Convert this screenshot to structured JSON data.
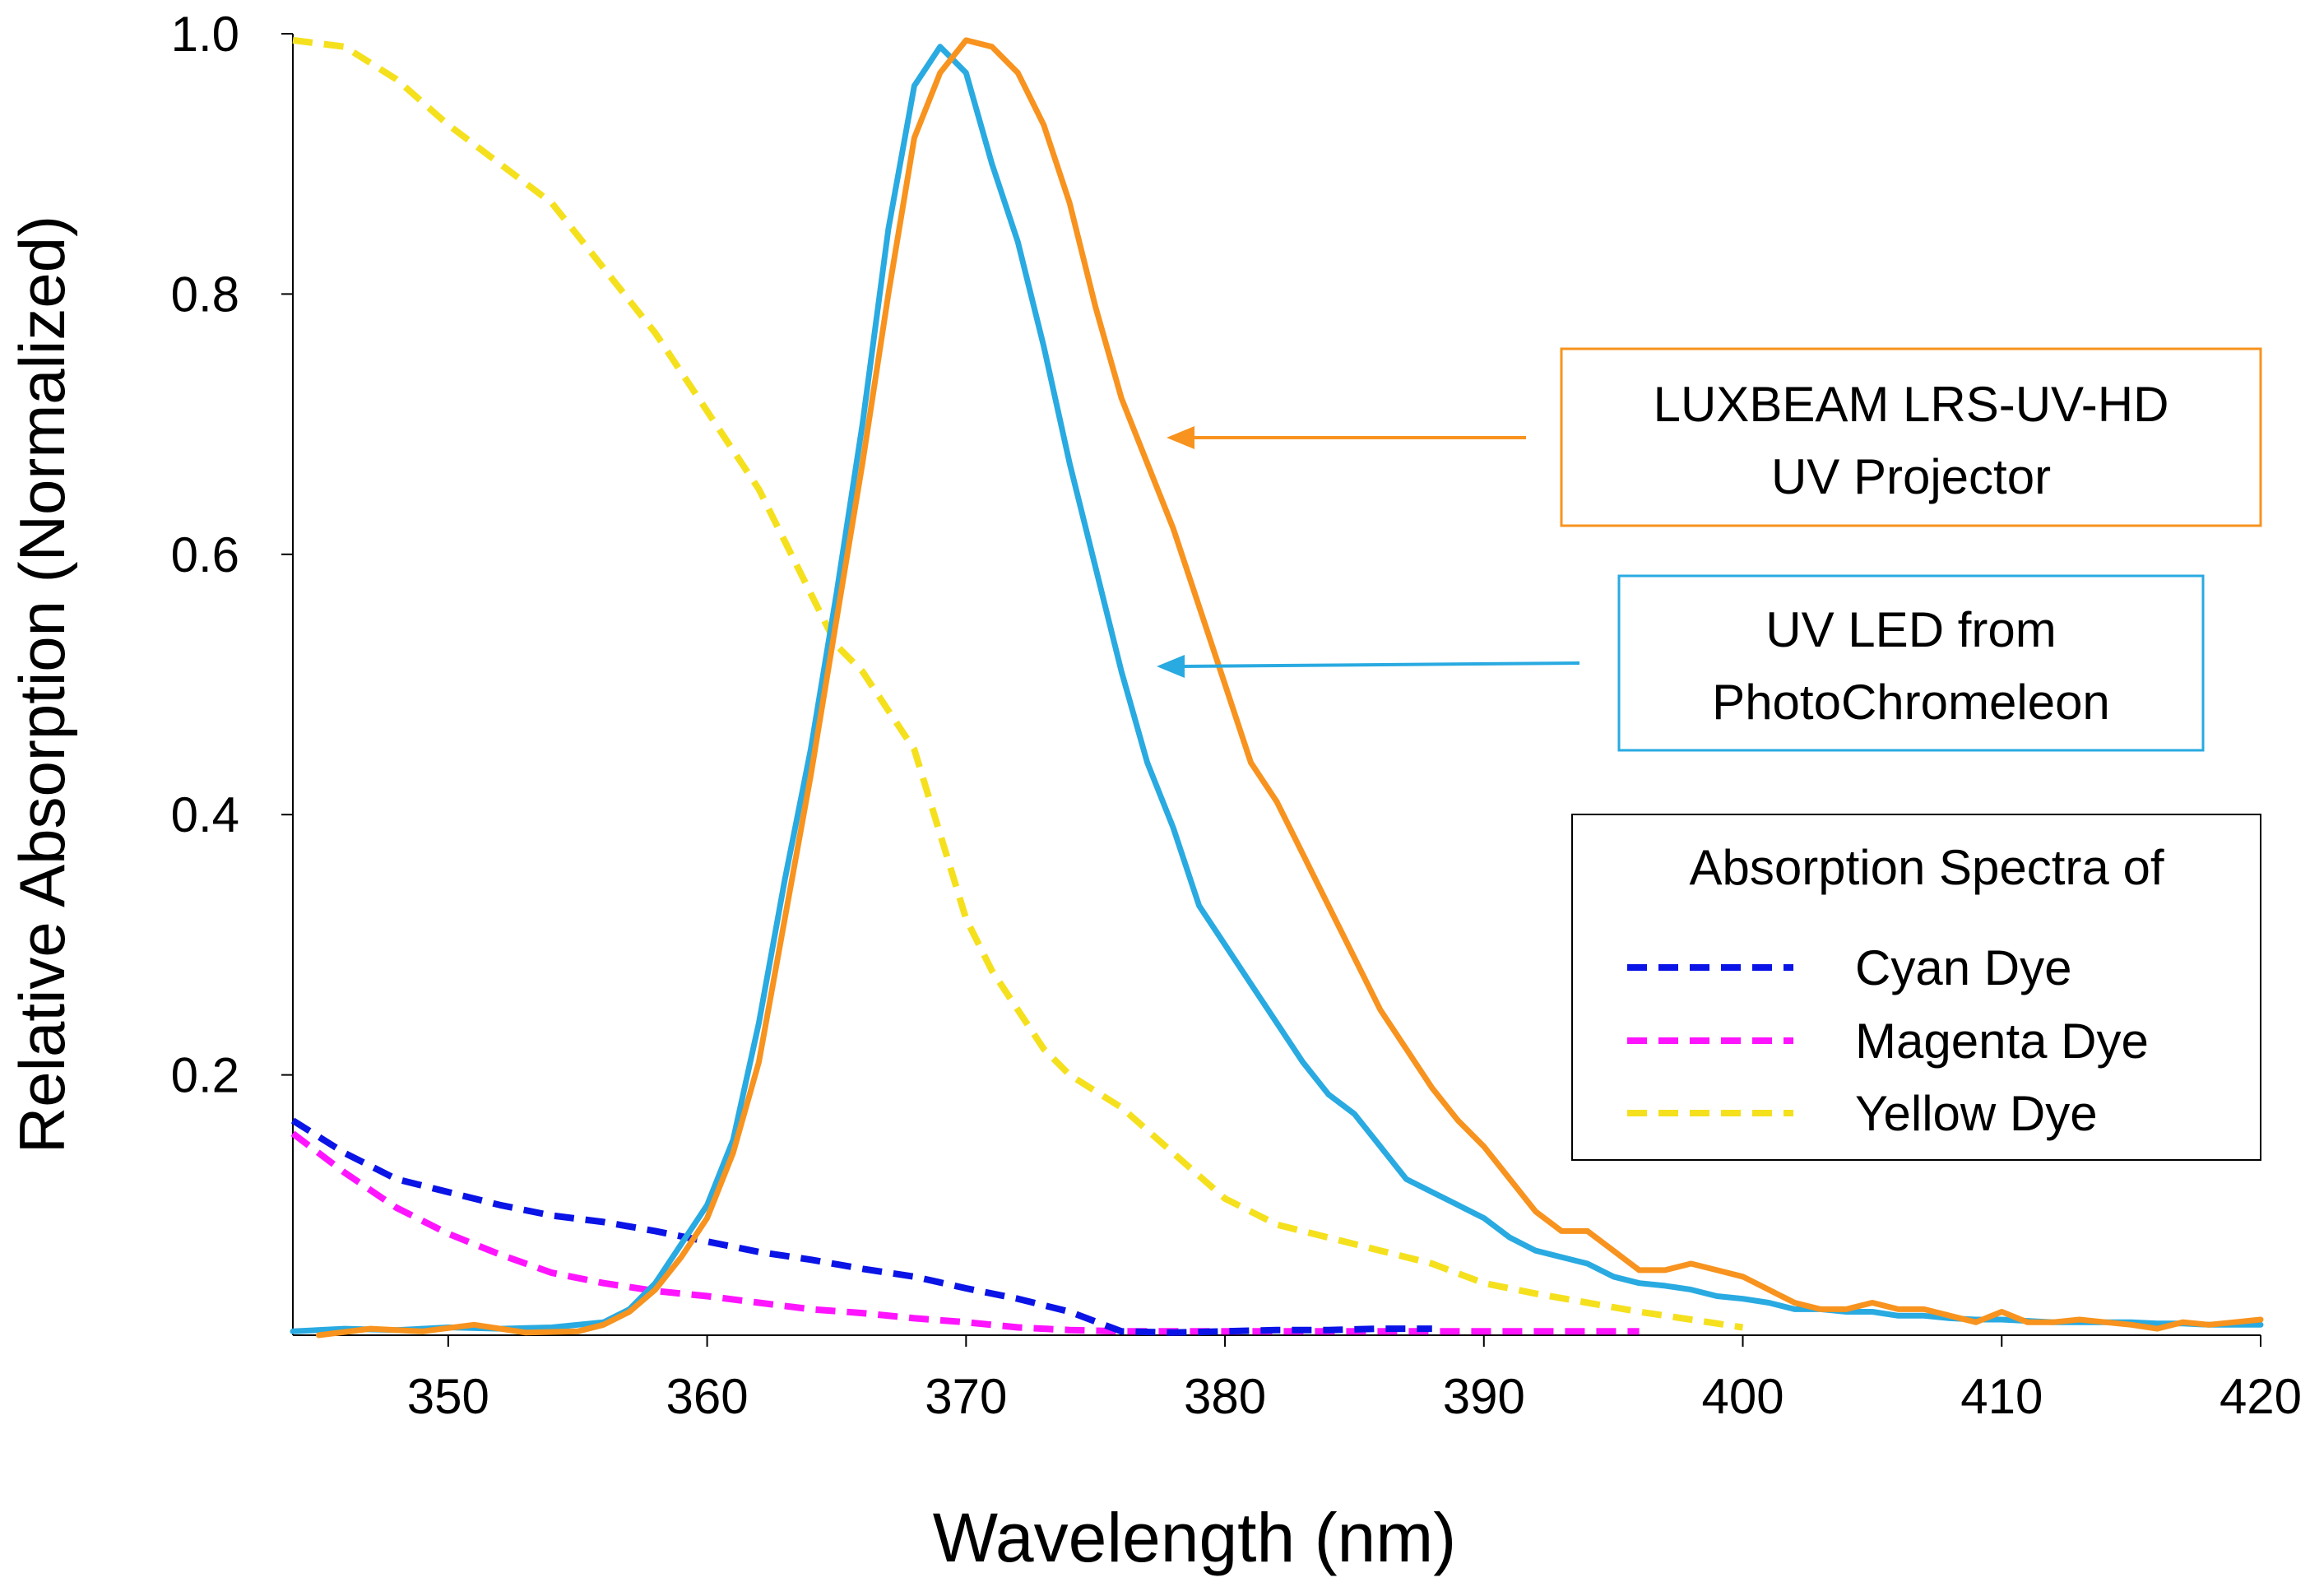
{
  "chart_data": {
    "type": "line",
    "xlabel": "Wavelength (nm)",
    "ylabel": "Relative Absorption (Normalized)",
    "xlim": [
      344,
      420
    ],
    "ylim": [
      0,
      1.0
    ],
    "x_ticks": [
      {
        "value": 350,
        "label": "350"
      },
      {
        "value": 360,
        "label": "360"
      },
      {
        "value": 370,
        "label": "370"
      },
      {
        "value": 380,
        "label": "380"
      },
      {
        "value": 390,
        "label": "390"
      },
      {
        "value": 400,
        "label": "400"
      },
      {
        "value": 410,
        "label": "410"
      },
      {
        "value": 420,
        "label": "420"
      }
    ],
    "y_ticks": [
      {
        "value": 0.2,
        "label": "0.2"
      },
      {
        "value": 0.4,
        "label": "0.4"
      },
      {
        "value": 0.6,
        "label": "0.6"
      },
      {
        "value": 0.8,
        "label": "0.8"
      },
      {
        "value": 1.0,
        "label": "1.0"
      }
    ],
    "grid": false,
    "series": [
      {
        "key": "projector",
        "color": "#f7931e",
        "dashed": false,
        "x": [
          345,
          347,
          349,
          351,
          353,
          355,
          356,
          357,
          358,
          359,
          360,
          361,
          362,
          363,
          364,
          365,
          366,
          367,
          368,
          369,
          370,
          371,
          372,
          373,
          374,
          375,
          376,
          377,
          378,
          379,
          380,
          381,
          382,
          383,
          384,
          385,
          386,
          387,
          388,
          389,
          390,
          391,
          392,
          393,
          394,
          395,
          396,
          397,
          398,
          399,
          400,
          401,
          402,
          403,
          404,
          405,
          406,
          407,
          408,
          409,
          410,
          411,
          412,
          413,
          414,
          415,
          416,
          417,
          418,
          419,
          420
        ],
        "y": [
          0.0,
          0.005,
          0.003,
          0.008,
          0.002,
          0.003,
          0.008,
          0.018,
          0.035,
          0.06,
          0.09,
          0.14,
          0.21,
          0.32,
          0.43,
          0.55,
          0.67,
          0.8,
          0.92,
          0.97,
          0.995,
          0.99,
          0.97,
          0.93,
          0.87,
          0.79,
          0.72,
          0.67,
          0.62,
          0.56,
          0.5,
          0.44,
          0.41,
          0.37,
          0.33,
          0.29,
          0.25,
          0.22,
          0.19,
          0.165,
          0.145,
          0.12,
          0.095,
          0.08,
          0.08,
          0.065,
          0.05,
          0.05,
          0.055,
          0.05,
          0.045,
          0.035,
          0.025,
          0.02,
          0.02,
          0.025,
          0.02,
          0.02,
          0.015,
          0.01,
          0.018,
          0.01,
          0.01,
          0.012,
          0.01,
          0.008,
          0.005,
          0.01,
          0.008,
          0.01,
          0.012
        ]
      },
      {
        "key": "led",
        "color": "#29aae1",
        "dashed": false,
        "x": [
          344,
          346,
          348,
          350,
          352,
          354,
          356,
          357,
          358,
          359,
          360,
          361,
          362,
          363,
          364,
          365,
          366,
          367,
          368,
          369,
          370,
          371,
          372,
          373,
          374,
          375,
          376,
          377,
          378,
          379,
          380,
          381,
          382,
          383,
          384,
          385,
          386,
          387,
          388,
          389,
          390,
          391,
          392,
          393,
          394,
          395,
          396,
          397,
          398,
          399,
          400,
          401,
          402,
          403,
          404,
          405,
          406,
          407,
          408,
          409,
          410,
          411,
          412,
          413,
          414,
          415,
          416,
          417,
          418,
          419,
          420
        ],
        "y": [
          0.003,
          0.005,
          0.004,
          0.006,
          0.005,
          0.006,
          0.01,
          0.02,
          0.04,
          0.07,
          0.1,
          0.15,
          0.24,
          0.35,
          0.45,
          0.57,
          0.7,
          0.85,
          0.96,
          0.99,
          0.97,
          0.9,
          0.84,
          0.76,
          0.67,
          0.59,
          0.51,
          0.44,
          0.39,
          0.33,
          0.3,
          0.27,
          0.24,
          0.21,
          0.185,
          0.17,
          0.145,
          0.12,
          0.11,
          0.1,
          0.09,
          0.075,
          0.065,
          0.06,
          0.055,
          0.045,
          0.04,
          0.038,
          0.035,
          0.03,
          0.028,
          0.025,
          0.02,
          0.02,
          0.018,
          0.018,
          0.015,
          0.015,
          0.013,
          0.012,
          0.012,
          0.011,
          0.01,
          0.01,
          0.01,
          0.01,
          0.009,
          0.009,
          0.008,
          0.008,
          0.008
        ]
      },
      {
        "key": "cyan",
        "name": "Cyan Dye",
        "color": "#0a14e6",
        "dashed": true,
        "x": [
          344,
          346,
          348,
          350,
          352,
          354,
          356,
          358,
          360,
          362,
          364,
          366,
          368,
          370,
          372,
          374,
          376,
          378,
          380,
          382,
          384,
          386,
          388
        ],
        "y": [
          0.165,
          0.14,
          0.12,
          0.11,
          0.1,
          0.092,
          0.087,
          0.08,
          0.072,
          0.064,
          0.058,
          0.051,
          0.045,
          0.036,
          0.028,
          0.018,
          0.003,
          0.002,
          0.003,
          0.004,
          0.004,
          0.005,
          0.005
        ]
      },
      {
        "key": "magenta",
        "name": "Magenta Dye",
        "color": "#ff14ff",
        "dashed": true,
        "x": [
          344,
          346,
          348,
          350,
          352,
          354,
          356,
          358,
          360,
          362,
          364,
          366,
          368,
          370,
          372,
          374,
          376,
          378,
          380,
          384,
          388,
          392,
          396
        ],
        "y": [
          0.155,
          0.125,
          0.098,
          0.078,
          0.062,
          0.048,
          0.04,
          0.034,
          0.03,
          0.025,
          0.02,
          0.017,
          0.013,
          0.01,
          0.006,
          0.004,
          0.003,
          0.003,
          0.003,
          0.003,
          0.003,
          0.003,
          0.003
        ]
      },
      {
        "key": "yellow",
        "name": "Yellow Dye",
        "color": "#f5e01e",
        "dashed": true,
        "x": [
          344,
          346,
          348,
          350,
          352,
          354,
          356,
          358,
          360,
          362,
          364,
          365,
          366,
          368,
          370,
          371,
          372,
          373,
          374,
          376,
          378,
          380,
          382,
          384,
          386,
          388,
          390,
          392,
          394,
          396,
          398,
          400
        ],
        "y": [
          0.995,
          0.99,
          0.965,
          0.93,
          0.9,
          0.87,
          0.82,
          0.77,
          0.71,
          0.65,
          0.57,
          0.53,
          0.51,
          0.45,
          0.32,
          0.28,
          0.25,
          0.22,
          0.2,
          0.175,
          0.14,
          0.105,
          0.085,
          0.075,
          0.065,
          0.055,
          0.04,
          0.032,
          0.025,
          0.018,
          0.012,
          0.006
        ]
      }
    ],
    "annotations": [
      {
        "key": "projector",
        "lines": [
          "LUXBEAM LRS-UV-HD",
          "UV Projector"
        ],
        "color": "#f7931e"
      },
      {
        "key": "led",
        "lines": [
          "UV LED from",
          "PhotoChromeleon"
        ],
        "color": "#29aae1"
      }
    ],
    "legend": {
      "title": "Absorption Spectra of",
      "placement": "right",
      "entries": [
        "Cyan Dye",
        "Magenta Dye",
        "Yellow Dye"
      ]
    }
  }
}
